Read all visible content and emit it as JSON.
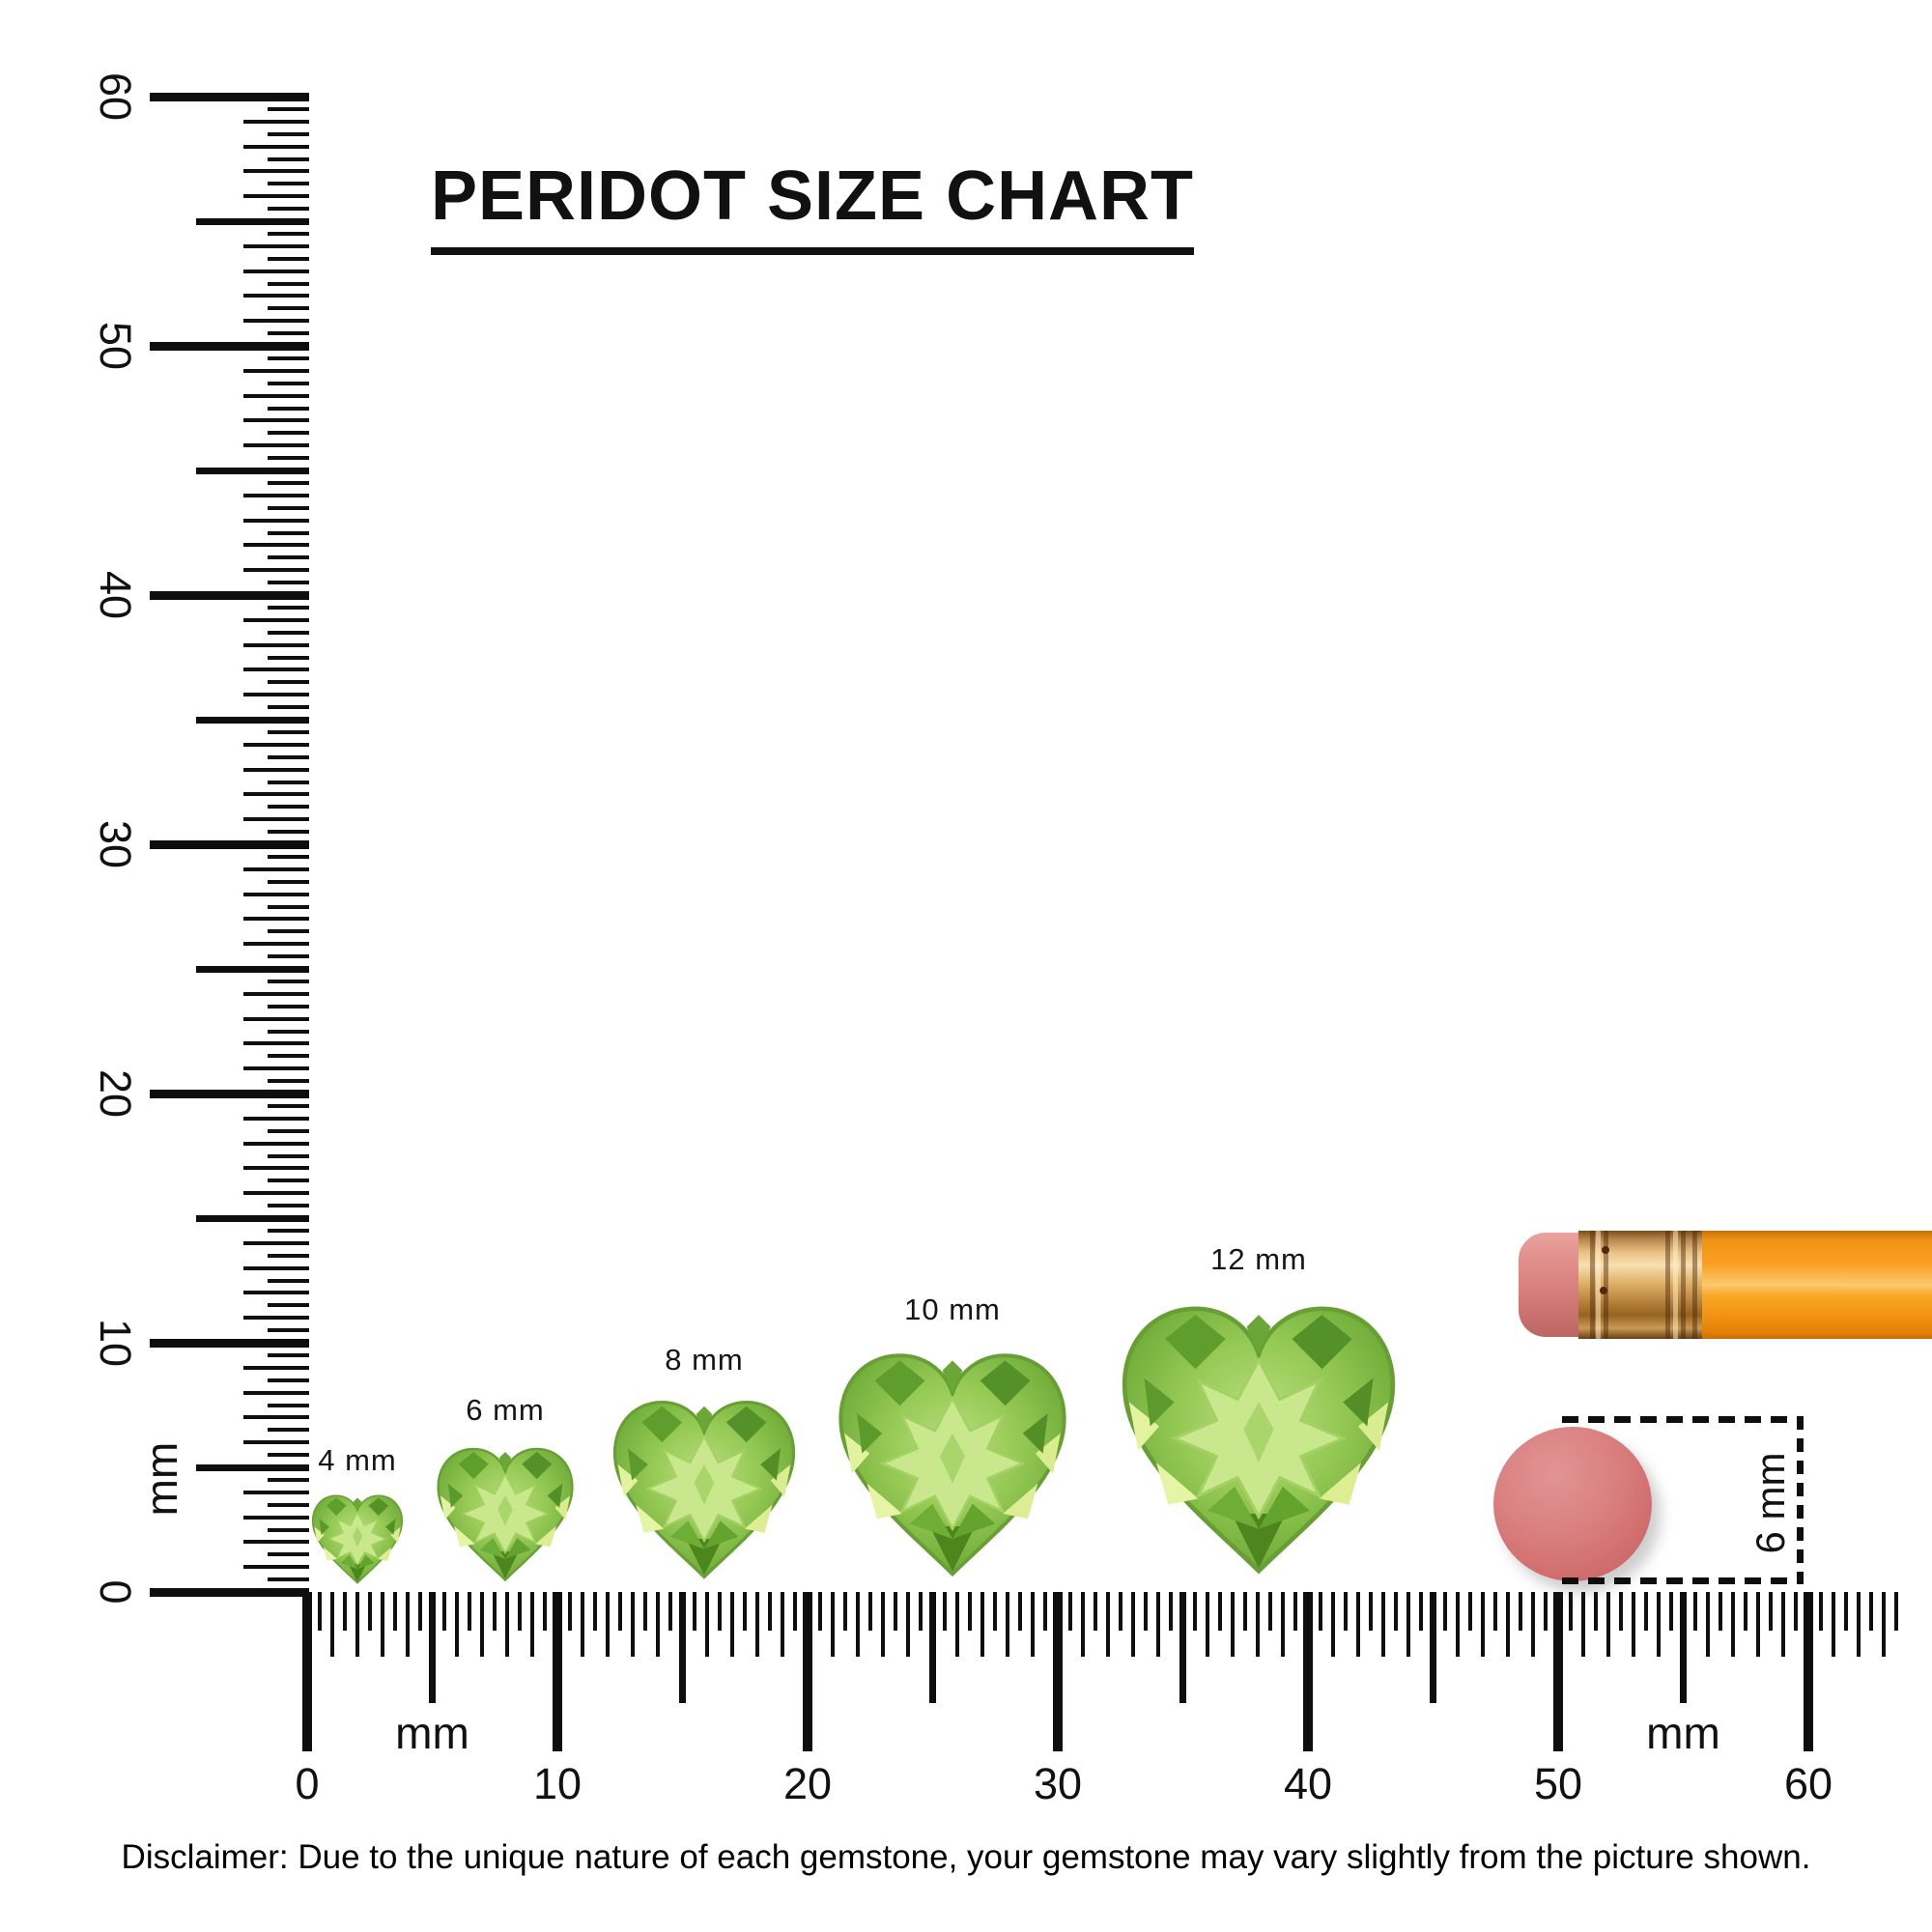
{
  "title": "PERIDOT SIZE CHART",
  "rulers": {
    "vertical": {
      "unit_label": "mm",
      "min_mm": 0,
      "max_mm": 60,
      "tick_step_mm": 0.5,
      "labels": [
        "60",
        "50",
        "40",
        "30",
        "20",
        "10",
        "0"
      ]
    },
    "horizontal": {
      "unit_label": "mm",
      "min_mm": 0,
      "max_mm": 60,
      "tick_step_mm": 0.5,
      "labels": [
        "0",
        "10",
        "20",
        "30",
        "40",
        "50",
        "60"
      ],
      "unit_label_positions_mm": [
        5,
        55
      ]
    }
  },
  "gems": [
    {
      "label": "4 mm",
      "size_mm": 4
    },
    {
      "label": "6 mm",
      "size_mm": 6
    },
    {
      "label": "8 mm",
      "size_mm": 8
    },
    {
      "label": "10 mm",
      "size_mm": 10
    },
    {
      "label": "12 mm",
      "size_mm": 12
    }
  ],
  "gem_info": {
    "stone": "peridot",
    "cut": "heart"
  },
  "reference_objects": {
    "pencil": "pencil-with-eraser",
    "eraser_dot_diameter_label": "6 mm"
  },
  "chart_data": {
    "type": "table",
    "title": "PERIDOT SIZE CHART",
    "categories": [
      "4 mm",
      "6 mm",
      "8 mm",
      "10 mm",
      "12 mm"
    ],
    "values": [
      4,
      6,
      8,
      10,
      12
    ],
    "unit": "mm"
  },
  "disclaimer": "Disclaimer: Due to the unique nature of each gemstone, your gemstone may vary slightly from the picture shown.",
  "colors": {
    "ink": "#0e0e0e",
    "gem_green": "#8cc152",
    "gem_light": "#c9e88e",
    "gem_dark": "#4c861d",
    "pencil_orange": "#f99e20",
    "ferrule_gold": "#e9c185",
    "eraser_pink": "#d67f7c",
    "dot_pink": "#d06d6d"
  }
}
